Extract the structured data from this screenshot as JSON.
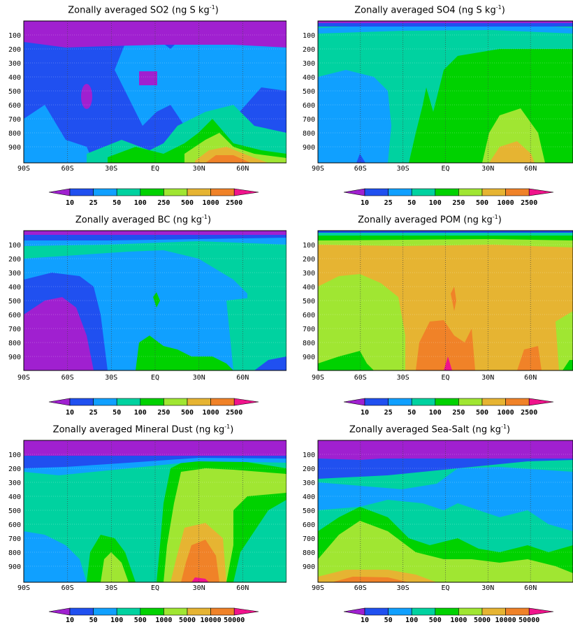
{
  "chart_data": [
    {
      "type": "heatmap",
      "title": "Zonally averaged SO2",
      "units_main": "(ng S kg",
      "units_sup": "-1",
      "units_end": ")",
      "x_ticks": [
        "90S",
        "60S",
        "30S",
        "EQ",
        "30N",
        "60N"
      ],
      "y_ticks": [
        "100",
        "200",
        "300",
        "400",
        "500",
        "600",
        "700",
        "800",
        "900"
      ],
      "colorbar_labels": [
        "10",
        "25",
        "50",
        "100",
        "250",
        "500",
        "1000",
        "2500"
      ],
      "description": "Purple stratosphere above ~200 hPa; blue free troposphere; light blue and green plumes near surface; orange maximum near 30N at surface"
    },
    {
      "type": "heatmap",
      "title": "Zonally averaged SO4",
      "units_main": "(ng S kg",
      "units_sup": "-1",
      "units_end": ")",
      "x_ticks": [
        "90S",
        "60S",
        "30S",
        "EQ",
        "30N",
        "60N"
      ],
      "y_ticks": [
        "100",
        "200",
        "300",
        "400",
        "500",
        "600",
        "700",
        "800",
        "900"
      ],
      "colorbar_labels": [
        "10",
        "25",
        "50",
        "100",
        "250",
        "500",
        "1000",
        "2500"
      ],
      "description": "Thin purple/blue band at top; teal in southern hemisphere; green over northern tropics; yellow-orange dome near 30N surface"
    },
    {
      "type": "heatmap",
      "title": "Zonally averaged BC",
      "units_main": "(ng kg",
      "units_sup": "-1",
      "units_end": ")",
      "x_ticks": [
        "90S",
        "60S",
        "30S",
        "EQ",
        "30N",
        "60N"
      ],
      "y_ticks": [
        "100",
        "200",
        "300",
        "400",
        "500",
        "600",
        "700",
        "800",
        "900"
      ],
      "colorbar_labels": [
        "10",
        "25",
        "50",
        "100",
        "250",
        "500",
        "1000",
        "2500"
      ],
      "description": "Purple in southern polar lower troposphere; blue southern mid latitudes; teal elsewhere; green near surface in tropics"
    },
    {
      "type": "heatmap",
      "title": "Zonally averaged POM",
      "units_main": "(ng kg",
      "units_sup": "-1",
      "units_end": ")",
      "x_ticks": [
        "90S",
        "60S",
        "30S",
        "EQ",
        "30N",
        "60N"
      ],
      "y_ticks": [
        "100",
        "200",
        "300",
        "400",
        "500",
        "600",
        "700",
        "800",
        "900"
      ],
      "colorbar_labels": [
        "10",
        "25",
        "50",
        "100",
        "250",
        "500",
        "1000",
        "2500"
      ],
      "description": "Mostly orange (500-1000); light green in southern mid latitudes; darker orange tropical lower troposphere; magenta hotspot at equator surface"
    },
    {
      "type": "heatmap",
      "title": "Zonally averaged Mineral Dust",
      "units_main": "(ng kg",
      "units_sup": "-1",
      "units_end": ")",
      "x_ticks": [
        "90S",
        "60S",
        "30S",
        "EQ",
        "30N",
        "60N"
      ],
      "y_ticks": [
        "100",
        "200",
        "300",
        "400",
        "500",
        "600",
        "700",
        "800",
        "900"
      ],
      "colorbar_labels": [
        "10",
        "50",
        "100",
        "500",
        "1000",
        "5000",
        "10000",
        "50000"
      ],
      "description": "Purple above 100 hPa; teal broadly; green and light green over northern tropics; orange maximum near 20-30N in lower troposphere"
    },
    {
      "type": "heatmap",
      "title": "Zonally averaged Sea-Salt",
      "units_main": "(ng kg",
      "units_sup": "-1",
      "units_end": ")",
      "x_ticks": [
        "90S",
        "60S",
        "30S",
        "EQ",
        "30N",
        "60N"
      ],
      "y_ticks": [
        "100",
        "200",
        "300",
        "400",
        "500",
        "600",
        "700",
        "800",
        "900"
      ],
      "colorbar_labels": [
        "10",
        "50",
        "100",
        "500",
        "1000",
        "5000",
        "10000",
        "50000"
      ],
      "description": "Purple/blue upper levels; light blue mid levels; green and light green lower troposphere; orange band near surface in southern ocean"
    }
  ],
  "palette": {
    "c0": "#a020d0",
    "c1": "#2050f0",
    "c2": "#10a0ff",
    "c3": "#00d2a0",
    "c4": "#00d200",
    "c5": "#a0e632",
    "c6": "#e6b432",
    "c7": "#f08228",
    "c8": "#f0148c"
  }
}
